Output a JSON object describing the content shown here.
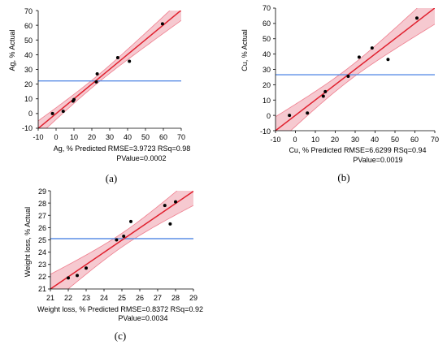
{
  "chart_data": [
    {
      "type": "scatter",
      "panel_label": "(a)",
      "ylabel": "Ag, % Actual",
      "xlabel_line1": "Ag, % Predicted RMSE=3.9723 RSq=0.98",
      "xlabel_line2": "PValue=0.0002",
      "xlim": [
        -10,
        70
      ],
      "ylim": [
        -10,
        70
      ],
      "xticks": [
        "-10",
        "0",
        "10",
        "20",
        "30",
        "40",
        "50",
        "60",
        "70"
      ],
      "yticks": [
        "70",
        "60",
        "50",
        "40",
        "30",
        "20",
        "10",
        "0",
        "-10"
      ],
      "mean_line_y": 22.2,
      "points": [
        {
          "x": -2,
          "y": 0
        },
        {
          "x": 4,
          "y": 1.5
        },
        {
          "x": 9.5,
          "y": 8.5
        },
        {
          "x": 10,
          "y": 9.5
        },
        {
          "x": 22.5,
          "y": 21.5
        },
        {
          "x": 23,
          "y": 27
        },
        {
          "x": 34.5,
          "y": 38
        },
        {
          "x": 41,
          "y": 35.5
        },
        {
          "x": 59.5,
          "y": 61
        }
      ],
      "colors": {
        "fit": "#e0202e",
        "band_fill": "#f6c9d0",
        "band_edge": "#ef7f8f",
        "mean": "#5b8ee6",
        "point": "#000000"
      }
    },
    {
      "type": "scatter",
      "panel_label": "(b)",
      "ylabel": "Cu, % Actual",
      "xlabel_line1": "Cu, % Predicted RMSE=6.6299 RSq=0.94",
      "xlabel_line2": "PValue=0.0019",
      "xlim": [
        -10,
        70
      ],
      "ylim": [
        -10,
        70
      ],
      "xticks": [
        "-10",
        "0",
        "10",
        "20",
        "30",
        "40",
        "50",
        "60",
        "70"
      ],
      "yticks": [
        "70",
        "60",
        "50",
        "40",
        "30",
        "20",
        "10",
        "0",
        "-10"
      ],
      "mean_line_y": 26.5,
      "points": [
        {
          "x": -3,
          "y": 0
        },
        {
          "x": 6,
          "y": 1.5
        },
        {
          "x": 14,
          "y": 12.5
        },
        {
          "x": 15,
          "y": 15.5
        },
        {
          "x": 26.5,
          "y": 25.5
        },
        {
          "x": 32,
          "y": 38
        },
        {
          "x": 38.5,
          "y": 44
        },
        {
          "x": 46.5,
          "y": 36.5
        },
        {
          "x": 61,
          "y": 63.5
        }
      ],
      "colors": {
        "fit": "#e0202e",
        "band_fill": "#f6c9d0",
        "band_edge": "#ef7f8f",
        "mean": "#5b8ee6",
        "point": "#000000"
      }
    },
    {
      "type": "scatter",
      "panel_label": "(c)",
      "ylabel": "Weight loss, % Actual",
      "xlabel_line1": "Weight loss, % Predicted RMSE=0.8372 RSq=0.92",
      "xlabel_line2": "PValue=0.0034",
      "xlim": [
        21,
        29
      ],
      "ylim": [
        21,
        29
      ],
      "xticks": [
        "21",
        "22",
        "23",
        "24",
        "25",
        "26",
        "27",
        "28",
        "29"
      ],
      "yticks": [
        "29",
        "28",
        "27",
        "26",
        "25",
        "24",
        "23",
        "22",
        "21"
      ],
      "mean_line_y": 25.1,
      "points": [
        {
          "x": 22,
          "y": 21.9
        },
        {
          "x": 22.5,
          "y": 22.1
        },
        {
          "x": 23,
          "y": 22.7
        },
        {
          "x": 24.7,
          "y": 25.0
        },
        {
          "x": 25.1,
          "y": 25.3
        },
        {
          "x": 25.5,
          "y": 26.5
        },
        {
          "x": 27.4,
          "y": 27.8
        },
        {
          "x": 27.7,
          "y": 26.3
        },
        {
          "x": 28,
          "y": 28.1
        }
      ],
      "colors": {
        "fit": "#e0202e",
        "band_fill": "#f6c9d0",
        "band_edge": "#ef7f8f",
        "mean": "#5b8ee6",
        "point": "#000000"
      }
    }
  ]
}
